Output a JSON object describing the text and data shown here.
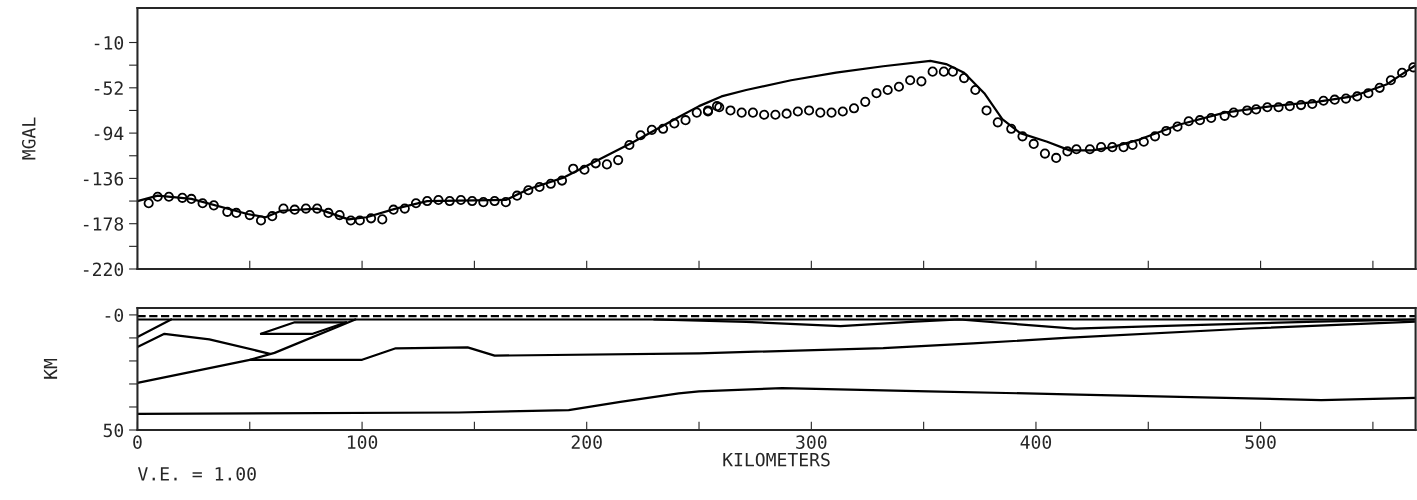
{
  "chart_data": [
    {
      "type": "scatter",
      "ylabel": "MGAL",
      "xlim": [
        0,
        569
      ],
      "ylim": [
        -220,
        22
      ],
      "xticks": [
        0,
        {
          "value": 50,
          "label": null
        },
        100,
        {
          "value": 150,
          "label": null
        },
        200,
        {
          "value": 250,
          "label": null
        },
        300,
        {
          "value": 350,
          "label": null
        },
        400,
        {
          "value": 450,
          "label": null
        },
        500,
        {
          "value": 550,
          "label": null
        }
      ],
      "yticks": [
        -10,
        {
          "value": -31,
          "label": null
        },
        -52,
        {
          "value": -73,
          "label": null
        },
        -94,
        {
          "value": -115,
          "label": null
        },
        -136,
        {
          "value": -157,
          "label": null
        },
        -178,
        {
          "value": -199,
          "label": null
        },
        -220
      ],
      "tick_labels": "y",
      "grid": false,
      "legend": false,
      "series": [
        {
          "type": "scatter",
          "marker": "circle",
          "color": "#000000",
          "x": [
            5,
            9,
            14,
            20,
            24,
            29,
            34,
            40,
            44,
            50,
            55,
            60,
            65,
            70,
            75,
            80,
            85,
            90,
            95,
            99,
            104,
            109,
            114,
            119,
            124,
            129,
            134,
            139,
            144,
            149,
            154,
            159,
            164,
            169,
            174,
            179,
            184,
            189,
            194,
            199,
            204,
            209,
            214,
            219,
            224,
            229,
            234,
            239,
            244,
            249,
            254,
            258,
            254,
            259,
            264,
            269,
            274,
            279,
            284,
            289,
            294,
            299,
            304,
            309,
            314,
            319,
            324,
            329,
            334,
            339,
            344,
            349,
            354,
            359,
            363,
            368,
            373,
            378,
            383,
            389,
            394,
            399,
            404,
            409,
            414,
            418,
            424,
            429,
            434,
            439,
            443,
            448,
            453,
            458,
            463,
            468,
            473,
            478,
            484,
            488,
            494,
            498,
            503,
            508,
            513,
            518,
            523,
            528,
            533,
            538,
            543,
            548,
            553,
            558,
            563,
            568
          ],
          "values": [
            -159,
            -153,
            -153,
            -154,
            -155,
            -159,
            -161,
            -167,
            -168,
            -170,
            -175,
            -171,
            -164,
            -165,
            -164,
            -164,
            -168,
            -170,
            -175,
            -175,
            -173,
            -174,
            -165,
            -164,
            -159,
            -157,
            -156,
            -157,
            -156,
            -157,
            -158,
            -157,
            -158,
            -152,
            -147,
            -144,
            -141,
            -138,
            -127,
            -128,
            -122,
            -123,
            -119,
            -105,
            -96,
            -91,
            -90,
            -85,
            -82,
            -75,
            -73,
            -69,
            -74,
            -70,
            -73,
            -75,
            -75,
            -77,
            -77,
            -76,
            -74,
            -73,
            -75,
            -75,
            -74,
            -71,
            -65,
            -57,
            -54,
            -51,
            -45,
            -46,
            -37,
            -37,
            -37,
            -43,
            -54,
            -73,
            -84,
            -90,
            -97,
            -104,
            -113,
            -117,
            -111,
            -109,
            -109,
            -107,
            -107,
            -107,
            -105,
            -102,
            -97,
            -92,
            -88,
            -83,
            -82,
            -80,
            -78,
            -75,
            -73,
            -72,
            -70,
            -70,
            -69,
            -68,
            -67,
            -64,
            -63,
            -62,
            -60,
            -57,
            -52,
            -45,
            -38,
            -33
          ]
        },
        {
          "type": "line",
          "marker": "none",
          "line_style": "solid",
          "color": "#000000",
          "x": [
            0,
            9,
            24,
            49,
            57,
            64,
            80,
            94,
            102,
            115,
            129,
            164,
            174,
            190,
            204,
            221,
            241,
            250,
            260,
            271,
            291,
            311,
            332,
            353,
            360,
            368,
            377,
            385,
            393,
            405,
            415,
            425,
            434,
            446,
            464,
            484,
            505,
            525,
            541,
            556,
            569
          ],
          "values": [
            -157,
            -152,
            -155,
            -169,
            -172,
            -166,
            -164,
            -174,
            -172,
            -164,
            -157,
            -156,
            -146,
            -135,
            -120,
            -102,
            -79,
            -69,
            -60,
            -54,
            -45,
            -38,
            -32,
            -27,
            -30,
            -38,
            -57,
            -81,
            -94,
            -102,
            -110,
            -110,
            -107,
            -100,
            -86,
            -75,
            -69,
            -65,
            -60,
            -49,
            -31
          ]
        }
      ]
    },
    {
      "type": "line",
      "ylabel": "KM",
      "xlabel": "KILOMETERS",
      "annotations": [
        "V.E. = 1.00"
      ],
      "xlim": [
        0,
        569
      ],
      "ylim": [
        50,
        -3
      ],
      "xticks": [
        0,
        {
          "value": 50,
          "label": null
        },
        100,
        {
          "value": 150,
          "label": null
        },
        200,
        {
          "value": 250,
          "label": null
        },
        300,
        {
          "value": 350,
          "label": null
        },
        400,
        {
          "value": 450,
          "label": null
        },
        500,
        {
          "value": 550,
          "label": null
        }
      ],
      "yticks": [
        {
          "value": 0,
          "label": "-0"
        },
        {
          "value": 10,
          "label": null
        },
        {
          "value": 20,
          "label": null
        },
        {
          "value": 30,
          "label": null
        },
        {
          "value": 40,
          "label": null
        },
        50
      ],
      "grid": false,
      "legend": false,
      "series": [
        {
          "color": "#000000",
          "line_style": "dashed",
          "x": [
            0,
            569
          ],
          "values": [
            0.5,
            0.5
          ]
        },
        {
          "color": "#000000",
          "line_style": "solid",
          "x": [
            0,
            569
          ],
          "values": [
            2,
            2
          ]
        },
        {
          "color": "#000000",
          "line_style": "solid",
          "x": [
            0,
            15
          ],
          "values": [
            9.6,
            2
          ]
        },
        {
          "color": "#000000",
          "line_style": "solid",
          "x": [
            0,
            12,
            32,
            59
          ],
          "values": [
            13.9,
            8.2,
            10.6,
            16.9
          ]
        },
        {
          "color": "#000000",
          "line_style": "solid",
          "x": [
            0,
            50,
            61,
            97
          ],
          "values": [
            29.5,
            19.5,
            16.5,
            2
          ]
        },
        {
          "color": "#000000",
          "line_style": "solid",
          "x": [
            50,
            100,
            115,
            147,
            159,
            250,
            332,
            372,
            413,
            495,
            569
          ],
          "values": [
            19.5,
            19.5,
            14.5,
            14.1,
            17.7,
            16.7,
            14.4,
            12.4,
            10,
            5.9,
            2.9
          ]
        },
        {
          "color": "#000000",
          "line_style": "solid",
          "x": [
            55,
            70,
            93
          ],
          "values": [
            8.2,
            3.2,
            3.2
          ]
        },
        {
          "color": "#000000",
          "line_style": "solid",
          "x": [
            55,
            78,
            93
          ],
          "values": [
            8.2,
            8.2,
            3.2
          ]
        },
        {
          "color": "#000000",
          "line_style": "solid",
          "x": [
            0,
            143,
            192,
            215,
            241,
            250,
            287,
            352,
            419,
            474,
            527,
            569
          ],
          "values": [
            43,
            42.4,
            41.4,
            37.8,
            34.1,
            33.2,
            31.8,
            33.2,
            34.6,
            35.8,
            37,
            36
          ]
        },
        {
          "color": "#000000",
          "line_style": "solid",
          "x": [
            230,
            271,
            313,
            346,
            366,
            417,
            454,
            525,
            569
          ],
          "values": [
            2,
            3,
            4.9,
            2.9,
            2,
            6,
            4.9,
            2.9,
            2
          ]
        }
      ]
    }
  ]
}
